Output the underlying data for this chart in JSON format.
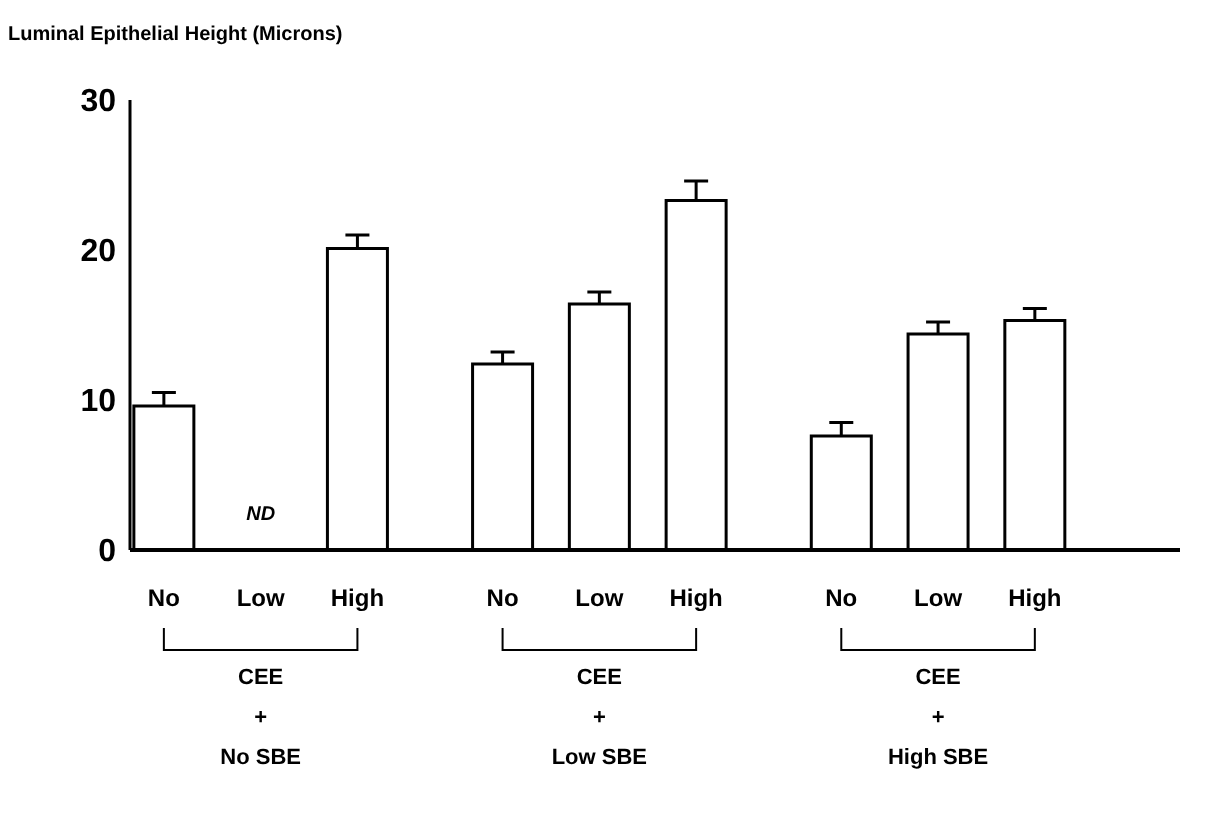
{
  "chart_data": {
    "type": "bar",
    "ylabel": "Luminal Epithelial Height (Microns)",
    "categories": [
      "No",
      "Low",
      "High",
      "No",
      "Low",
      "High",
      "No",
      "Low",
      "High"
    ],
    "values": [
      9.6,
      null,
      20.1,
      12.4,
      16.4,
      23.3,
      7.6,
      14.4,
      15.3
    ],
    "errors": [
      [
        9.6,
        10.5
      ],
      null,
      [
        20.1,
        21.0
      ],
      [
        12.4,
        13.2
      ],
      [
        16.4,
        17.2
      ],
      [
        23.3,
        24.6
      ],
      [
        7.6,
        8.5
      ],
      [
        14.4,
        15.2
      ],
      [
        15.3,
        16.1
      ]
    ],
    "color": "#ffffff",
    "ylim": [
      0,
      30
    ],
    "yticks": [
      0,
      10,
      20,
      30
    ],
    "grid": false,
    "annotations": [
      "ND",
      "CEE\n+\nNo SBE",
      "CEE\n+\nLow SBE",
      "CEE\n+\nHigh SBE"
    ]
  }
}
